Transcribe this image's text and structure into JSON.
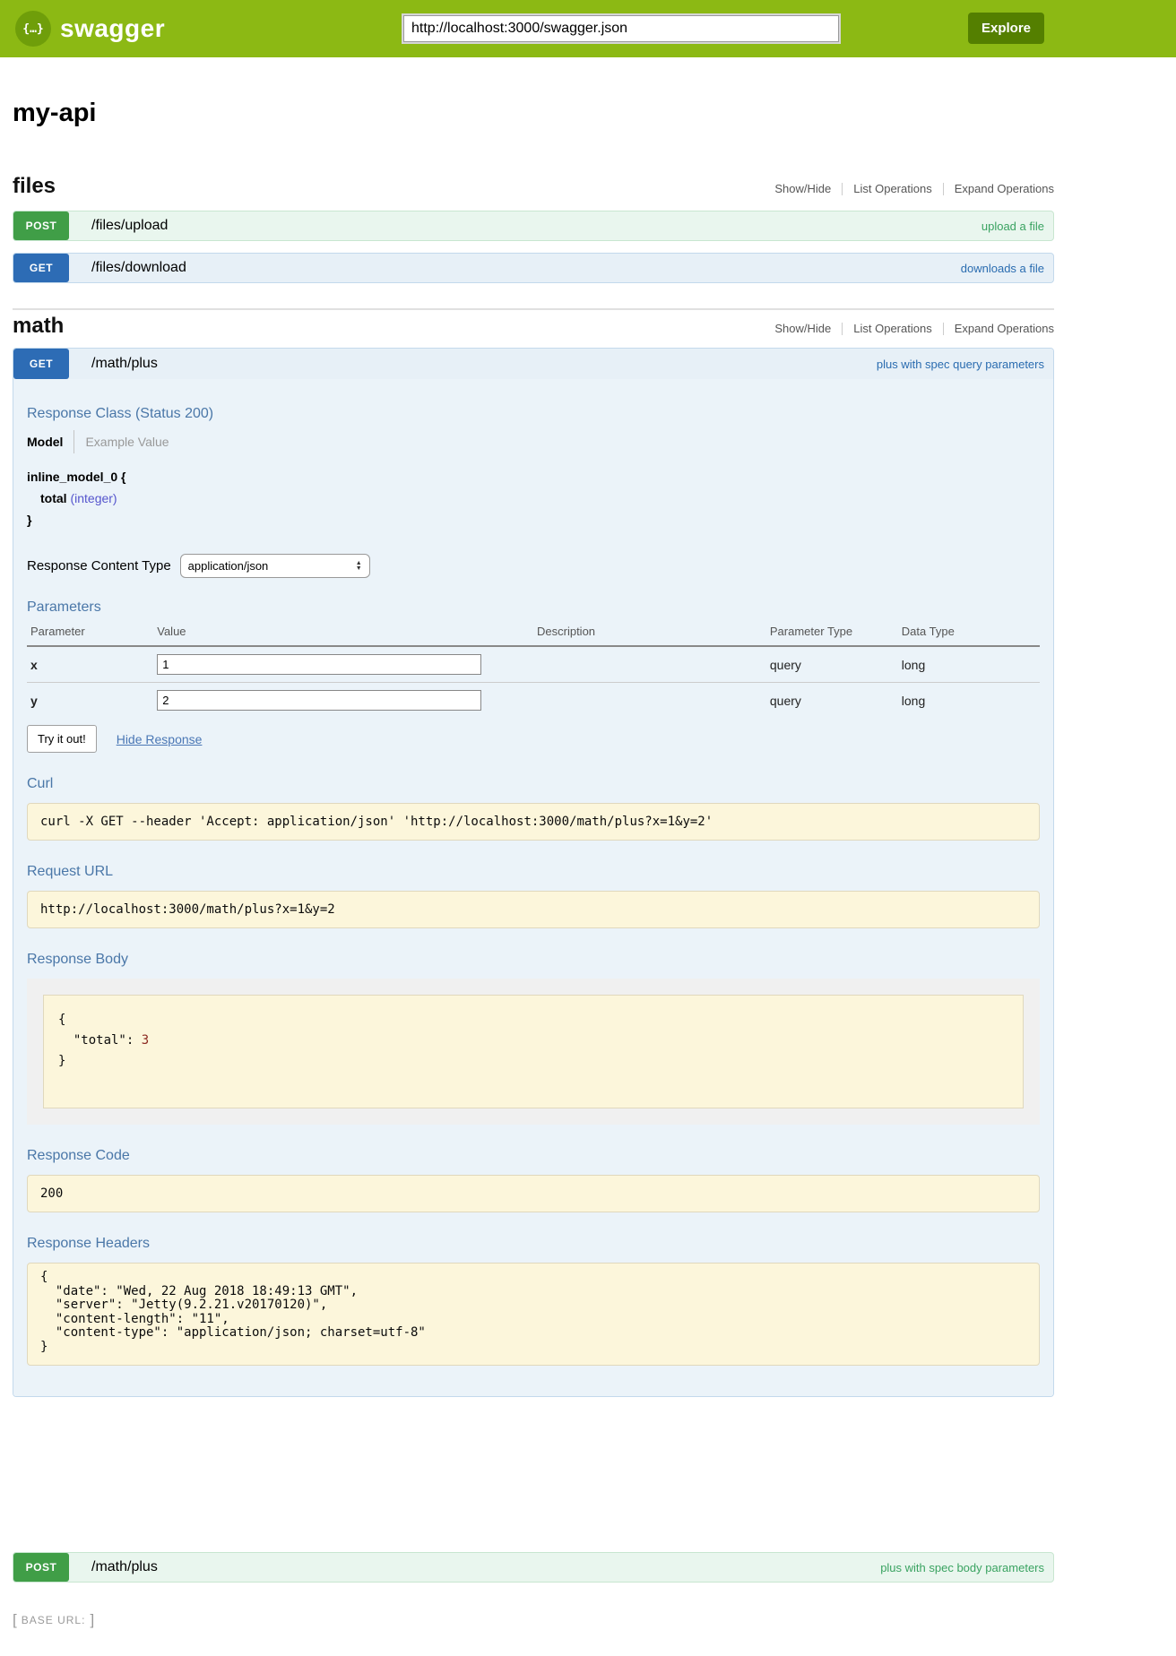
{
  "header": {
    "logo_glyph": "{…}",
    "brand": "swagger",
    "url_value": "http://localhost:3000/swagger.json",
    "explore_label": "Explore"
  },
  "page": {
    "title": "my-api"
  },
  "section_links": {
    "show_hide": "Show/Hide",
    "list_operations": "List Operations",
    "expand_operations": "Expand Operations"
  },
  "files_section": {
    "title": "files",
    "operations": [
      {
        "method": "POST",
        "path": "/files/upload",
        "summary": "upload a file"
      },
      {
        "method": "GET",
        "path": "/files/download",
        "summary": "downloads a file"
      }
    ]
  },
  "math_section": {
    "title": "math",
    "get_plus": {
      "method": "GET",
      "path": "/math/plus",
      "summary": "plus with spec query parameters",
      "response_class": {
        "heading": "Response Class (Status 200)",
        "tab_model": "Model",
        "tab_example": "Example Value",
        "model_open": "inline_model_0 {",
        "property_name": "total",
        "property_type": "(integer)",
        "model_close": "}"
      },
      "response_content_type": {
        "label": "Response Content Type",
        "selected": "application/json"
      },
      "parameters": {
        "heading": "Parameters",
        "columns": {
          "parameter": "Parameter",
          "value": "Value",
          "description": "Description",
          "param_type": "Parameter Type",
          "data_type": "Data Type"
        },
        "rows": [
          {
            "name": "x",
            "value": "1",
            "description": "",
            "param_type": "query",
            "data_type": "long"
          },
          {
            "name": "y",
            "value": "2",
            "description": "",
            "param_type": "query",
            "data_type": "long"
          }
        ]
      },
      "try_it_out": "Try it out!",
      "hide_response": "Hide Response",
      "curl": {
        "heading": "Curl",
        "command": "curl -X GET --header 'Accept: application/json' 'http://localhost:3000/math/plus?x=1&y=2'"
      },
      "request_url": {
        "heading": "Request URL",
        "value": "http://localhost:3000/math/plus?x=1&y=2"
      },
      "response_body": {
        "heading": "Response Body",
        "before": "{\n  \"total\": ",
        "value": "3",
        "after": "\n}"
      },
      "response_code": {
        "heading": "Response Code",
        "value": "200"
      },
      "response_headers": {
        "heading": "Response Headers",
        "body": "{\n  \"date\": \"Wed, 22 Aug 2018 18:49:13 GMT\",\n  \"server\": \"Jetty(9.2.21.v20170120)\",\n  \"content-length\": \"11\",\n  \"content-type\": \"application/json; charset=utf-8\"\n}"
      }
    },
    "post_plus": {
      "method": "POST",
      "path": "/math/plus",
      "summary": "plus with spec body parameters"
    }
  },
  "footer": {
    "bracket_open": "[",
    "base_url_label": "BASE URL:",
    "bracket_close": "]"
  },
  "colors": {
    "header_green": "#8cb914",
    "explore_button": "#547f00",
    "post_badge": "#409e47",
    "post_row_bg": "#e9f6ee",
    "get_badge": "#2d6cb5",
    "get_row_bg": "#e7f0f7",
    "expanded_content_bg": "#ebf3f9",
    "heading_blue": "#4a77a8",
    "code_block_bg": "#fcf6db",
    "number_literal": "#8c2a21"
  }
}
